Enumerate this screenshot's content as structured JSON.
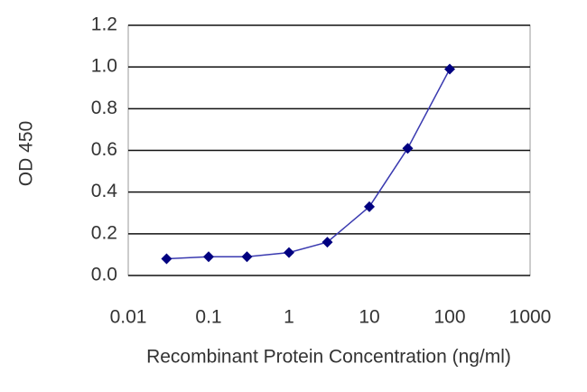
{
  "chart_data": {
    "type": "line",
    "x_label": "Recombinant Protein Concentration (ng/ml)",
    "y_label": "OD 450",
    "x": [
      0.03,
      0.1,
      0.3,
      1,
      3,
      10,
      30,
      100
    ],
    "series": [
      {
        "color": "#000080",
        "values": [
          0.08,
          0.09,
          0.09,
          0.11,
          0.16,
          0.33,
          0.61,
          0.99
        ]
      }
    ],
    "x_log": true,
    "xlim": [
      0.01,
      1000
    ],
    "xticks": [
      0.01,
      0.1,
      1,
      10,
      100,
      1000
    ],
    "ylim": [
      0,
      1.2
    ],
    "yticks": [
      {
        "value": 0,
        "label": "0.0"
      },
      0.2,
      0.4,
      0.6,
      0.8,
      {
        "value": 1,
        "label": "1.0"
      },
      1.2
    ],
    "grid": true
  }
}
